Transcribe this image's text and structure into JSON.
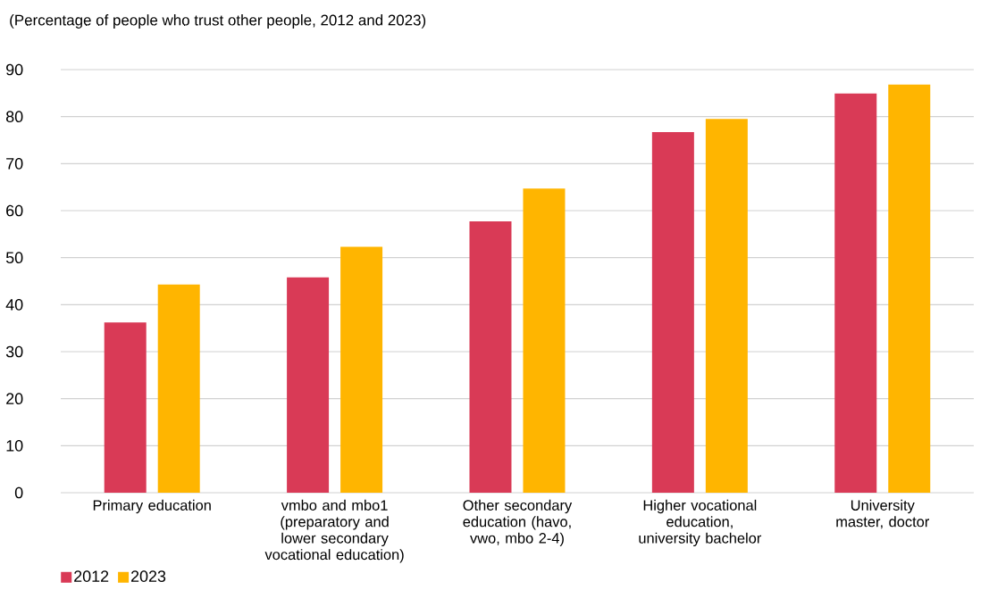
{
  "chart_data": {
    "type": "bar",
    "title": "(Percentage of people who trust other people, 2012 and 2023)",
    "categories": [
      "Primary education",
      "vmbo and mbo1 (preparatory and lower secondary vocational education)",
      "Other secondary education (havo, vwo, mbo 2-4)",
      "Higher vocational education, university bachelor",
      "University master, doctor"
    ],
    "series": [
      {
        "name": "2012",
        "color": "#d93a56",
        "values": [
          36.2,
          45.8,
          57.7,
          76.7,
          84.9
        ]
      },
      {
        "name": "2023",
        "color": "#ffb500",
        "values": [
          44.3,
          52.3,
          64.7,
          79.5,
          86.8
        ]
      }
    ],
    "ylim": [
      0,
      90
    ],
    "yticks": [
      0,
      10,
      20,
      30,
      40,
      50,
      60,
      70,
      80,
      90
    ],
    "grid": "y",
    "legend": "bottom left"
  }
}
